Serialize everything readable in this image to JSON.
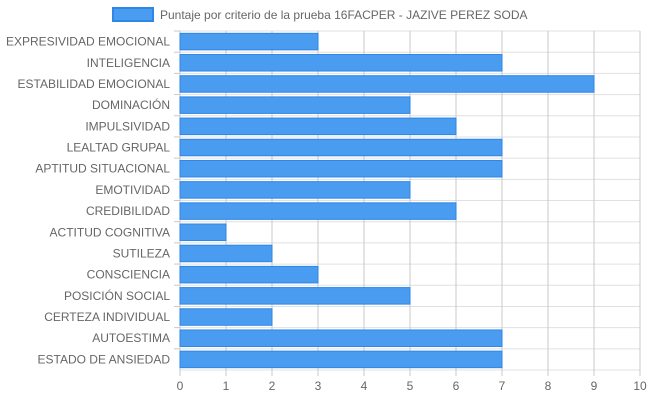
{
  "chart_data": {
    "type": "bar",
    "orientation": "horizontal",
    "legend_position": "top",
    "grid": true,
    "xlim": [
      0,
      10
    ],
    "x_ticks": [
      "0",
      "1",
      "2",
      "3",
      "4",
      "5",
      "6",
      "7",
      "8",
      "9",
      "10"
    ],
    "categories": [
      "EXPRESIVIDAD EMOCIONAL",
      "INTELIGENCIA",
      "ESTABILIDAD EMOCIONAL",
      "DOMINACIÓN",
      "IMPULSIVIDAD",
      "LEALTAD GRUPAL",
      "APTITUD SITUACIONAL",
      "EMOTIVIDAD",
      "CREDIBILIDAD",
      "ACTITUD COGNITIVA",
      "SUTILEZA",
      "CONSCIENCIA",
      "POSICIÓN SOCIAL",
      "CERTEZA INDIVIDUAL",
      "AUTOESTIMA",
      "ESTADO DE ANSIEDAD"
    ],
    "series": [
      {
        "name": "Puntaje por criterio de la prueba 16FACPER - JAZIVE PEREZ SODA",
        "color": "#4a9cf0",
        "border_color": "#2e86e6",
        "values": [
          3,
          7,
          9,
          5,
          6,
          7,
          7,
          5,
          6,
          1,
          2,
          3,
          5,
          2,
          7,
          7
        ]
      }
    ],
    "grid_color": "#e0e0e0",
    "label_color": "#666666"
  }
}
